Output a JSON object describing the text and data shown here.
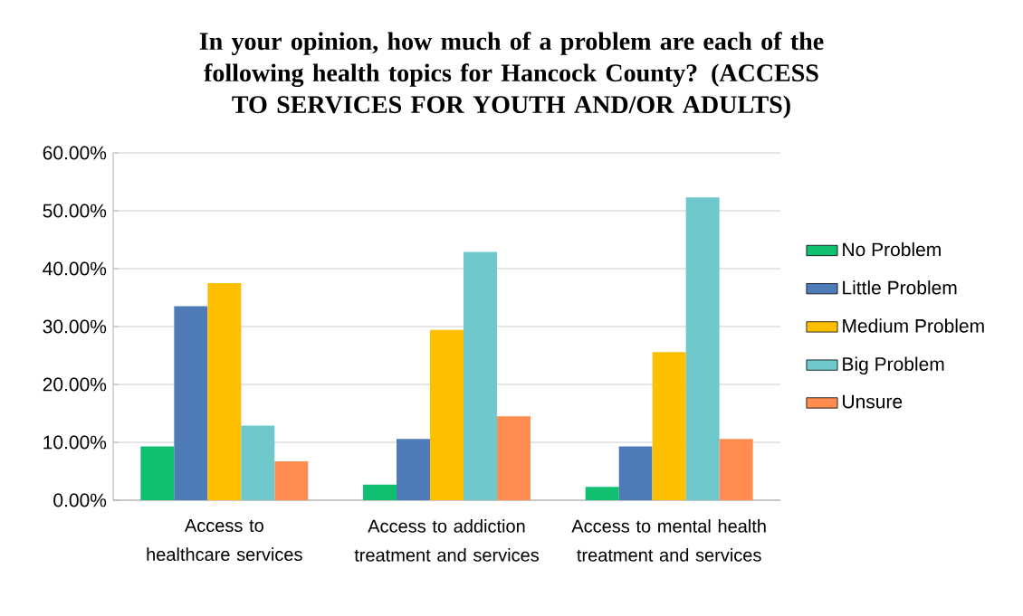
{
  "chart_data": {
    "type": "bar",
    "title": "In your opinion, how much of a problem are each of the following health topics for Hancock County? (ACCESS TO SERVICES FOR YOUTH AND/OR ADULTS)",
    "categories": [
      "Access to healthcare services",
      "Access to addiction treatment and services",
      "Access to mental health treatment and services"
    ],
    "series": [
      {
        "name": "No Problem",
        "color": "#10c070",
        "values": [
          9.3,
          2.7,
          2.3
        ]
      },
      {
        "name": "Little Problem",
        "color": "#4f7ab8",
        "values": [
          33.5,
          10.6,
          9.3
        ]
      },
      {
        "name": "Medium Problem",
        "color": "#fdbf00",
        "values": [
          37.5,
          29.4,
          25.6
        ]
      },
      {
        "name": "Big Problem",
        "color": "#6ec8cc",
        "values": [
          12.9,
          42.9,
          52.3
        ]
      },
      {
        "name": "Unsure",
        "color": "#ff8c50",
        "values": [
          6.7,
          14.5,
          10.6
        ]
      }
    ],
    "ylim": [
      0,
      60
    ],
    "yticks": [
      {
        "value": 0,
        "label": "0.00%"
      },
      {
        "value": 10,
        "label": "10.00%"
      },
      {
        "value": 20,
        "label": "20.00%"
      },
      {
        "value": 30,
        "label": "30.00%"
      },
      {
        "value": 40,
        "label": "40.00%"
      },
      {
        "value": 50,
        "label": "50.00%"
      },
      {
        "value": 60,
        "label": "60.00%"
      }
    ],
    "grid": "y",
    "legend": "right"
  }
}
